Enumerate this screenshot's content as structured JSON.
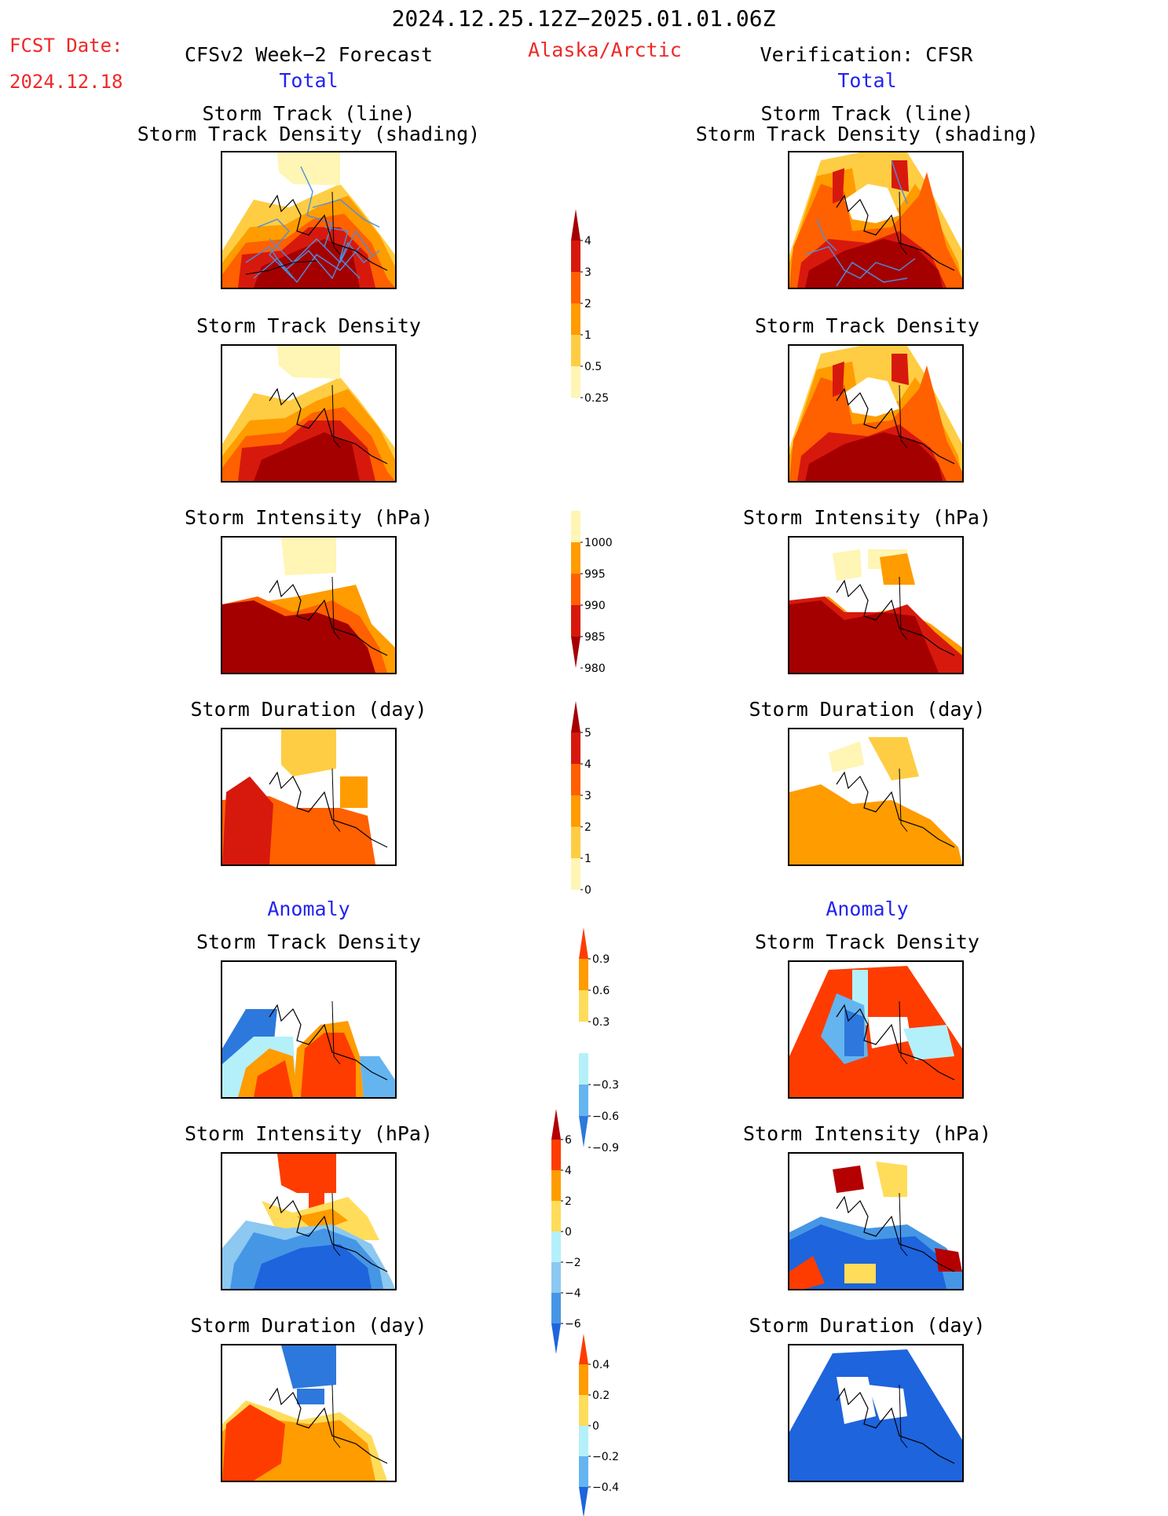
{
  "header": {
    "title": "2024.12.25.12Z−2025.01.01.06Z",
    "region": "Alaska/Arctic",
    "fcst_label": "FCST Date:",
    "fcst_date": "2024.12.18",
    "left_title": "CFSv2 Week−2 Forecast",
    "right_title": "Verification: CFSR",
    "total_left": "Total",
    "total_right": "Total",
    "anomaly_left": "Anomaly",
    "anomaly_right": "Anomaly"
  },
  "panel_titles": {
    "track_line": "Storm Track (line)",
    "track_shading": "Storm Track Density (shading)",
    "density": "Storm Track Density",
    "intensity": "Storm Intensity (hPa)",
    "duration": "Storm Duration (day)"
  },
  "colorbars": {
    "density_total": {
      "labels": [
        "4",
        "3",
        "2",
        "1",
        "0.5",
        "0.25"
      ],
      "colors": [
        "#a50000",
        "#d7190d",
        "#ff6000",
        "#ff9c00",
        "#ffcd43",
        "#fff5b4"
      ]
    },
    "intensity_total": {
      "labels": [
        "1000",
        "995",
        "990",
        "985",
        "980"
      ],
      "colors": [
        "#fff5b4",
        "#ff9c00",
        "#ff6000",
        "#d7190d",
        "#a50000"
      ]
    },
    "duration_total": {
      "labels": [
        "5",
        "4",
        "3",
        "2",
        "1",
        "0"
      ],
      "colors": [
        "#a50000",
        "#d7190d",
        "#ff6000",
        "#ff9c00",
        "#ffcd43",
        "#fff5b4"
      ]
    },
    "density_anom": {
      "labels": [
        "0.9",
        "0.6",
        "0.3",
        "−0.3",
        "−0.6",
        "−0.9"
      ],
      "colors": [
        "#ff3c00",
        "#ff9c00",
        "#ffdc5a",
        "#ffffff",
        "#b4f0fa",
        "#64b4f0",
        "#2d78dc"
      ]
    },
    "intensity_anom": {
      "labels": [
        "6",
        "4",
        "2",
        "0",
        "−2",
        "−4",
        "−6"
      ],
      "colors": [
        "#b40000",
        "#ff3c00",
        "#ff9c00",
        "#ffdc5a",
        "#b4f0fa",
        "#8cc8f0",
        "#4696e6",
        "#1e64dc"
      ]
    },
    "duration_anom": {
      "labels": [
        "0.4",
        "0.2",
        "0",
        "−0.2",
        "−0.4"
      ],
      "colors": [
        "#ff3c00",
        "#ff9c00",
        "#ffdc5a",
        "#b4f0fa",
        "#64b4f0",
        "#1e64dc"
      ]
    }
  }
}
